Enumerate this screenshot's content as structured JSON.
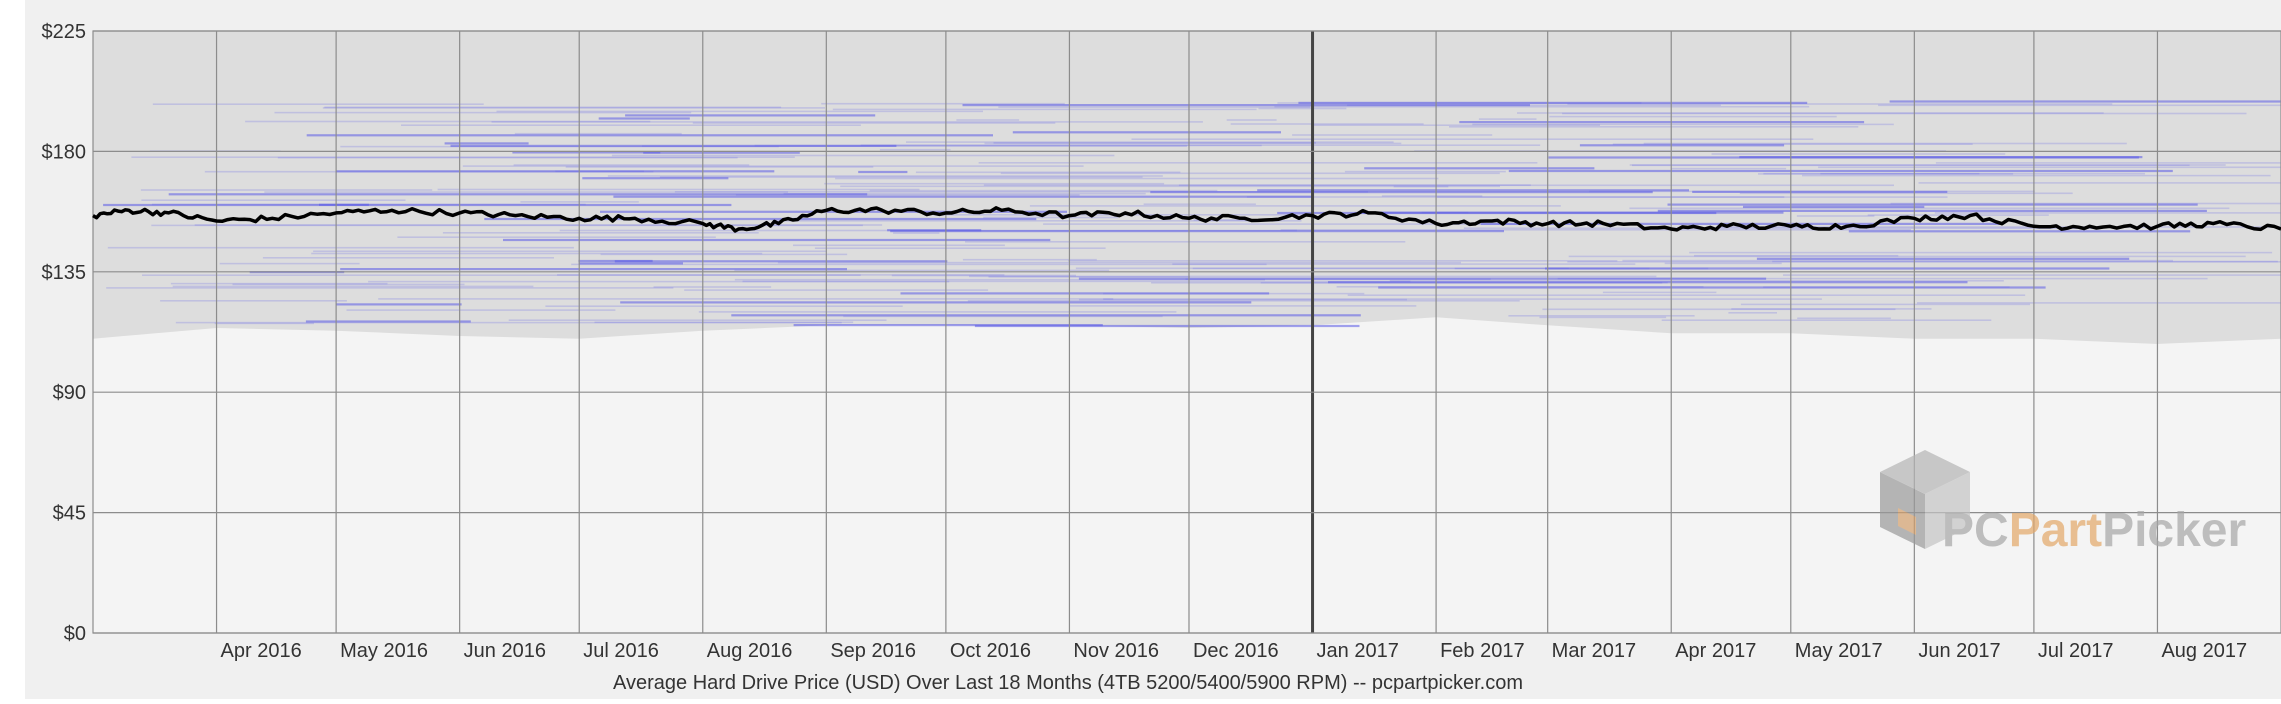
{
  "chart_data": {
    "type": "area",
    "title": "Average Hard Drive Price (USD) Over Last 18 Months (4TB 5200/5400/5900 RPM) -- pcpartpicker.com",
    "xlabel": "",
    "ylabel": "",
    "ylim": [
      0,
      225
    ],
    "yticks": [
      {
        "value": 0,
        "label": "$0"
      },
      {
        "value": 45,
        "label": "$45"
      },
      {
        "value": 90,
        "label": "$90"
      },
      {
        "value": 135,
        "label": "$135"
      },
      {
        "value": 180,
        "label": "$180"
      },
      {
        "value": 225,
        "label": "$225"
      }
    ],
    "xlim": [
      "2016-03-01",
      "2017-09-01"
    ],
    "months": [
      {
        "date": "2016-04-01",
        "label": "Apr 2016"
      },
      {
        "date": "2016-05-01",
        "label": "May 2016"
      },
      {
        "date": "2016-06-01",
        "label": "Jun 2016"
      },
      {
        "date": "2016-07-01",
        "label": "Jul 2016"
      },
      {
        "date": "2016-08-01",
        "label": "Aug 2016"
      },
      {
        "date": "2016-09-01",
        "label": "Sep 2016"
      },
      {
        "date": "2016-10-01",
        "label": "Oct 2016"
      },
      {
        "date": "2016-11-01",
        "label": "Nov 2016"
      },
      {
        "date": "2016-12-01",
        "label": "Dec 2016"
      },
      {
        "date": "2017-01-01",
        "label": "Jan 2017"
      },
      {
        "date": "2017-02-01",
        "label": "Feb 2017"
      },
      {
        "date": "2017-03-01",
        "label": "Mar 2017"
      },
      {
        "date": "2017-04-01",
        "label": "Apr 2017"
      },
      {
        "date": "2017-05-01",
        "label": "May 2017"
      },
      {
        "date": "2017-06-01",
        "label": "Jun 2017"
      },
      {
        "date": "2017-07-01",
        "label": "Jul 2017"
      },
      {
        "date": "2017-08-01",
        "label": "Aug 2017"
      }
    ],
    "year_boundary": "2017-01-01",
    "grid": true,
    "price_range_band": {
      "x": [
        "2016-03-01",
        "2016-04-01",
        "2016-05-01",
        "2016-06-01",
        "2016-07-01",
        "2016-08-01",
        "2016-09-01",
        "2016-10-01",
        "2016-11-01",
        "2016-12-01",
        "2017-01-01",
        "2017-02-01",
        "2017-03-01",
        "2017-04-01",
        "2017-05-01",
        "2017-06-01",
        "2017-07-01",
        "2017-08-01",
        "2017-09-01"
      ],
      "min": [
        110,
        114,
        113,
        111,
        110,
        113,
        115,
        115,
        115,
        114,
        115,
        118,
        115,
        112,
        112,
        110,
        110,
        108,
        110
      ],
      "max": [
        225,
        225,
        225,
        225,
        225,
        225,
        225,
        225,
        225,
        225,
        225,
        225,
        225,
        225,
        225,
        225,
        225,
        225,
        225
      ]
    },
    "series": [
      {
        "type": "line",
        "x": [
          "2016-03-01",
          "2016-03-10",
          "2016-03-20",
          "2016-04-01",
          "2016-04-15",
          "2016-05-01",
          "2016-05-15",
          "2016-06-01",
          "2016-06-15",
          "2016-07-01",
          "2016-07-15",
          "2016-08-01",
          "2016-08-10",
          "2016-08-20",
          "2016-09-01",
          "2016-09-15",
          "2016-10-01",
          "2016-10-15",
          "2016-11-01",
          "2016-11-15",
          "2016-12-01",
          "2016-12-15",
          "2017-01-01",
          "2017-01-15",
          "2017-02-01",
          "2017-02-15",
          "2017-03-01",
          "2017-03-15",
          "2017-04-01",
          "2017-04-15",
          "2017-05-01",
          "2017-05-15",
          "2017-06-01",
          "2017-06-15",
          "2017-07-01",
          "2017-07-15",
          "2017-08-01",
          "2017-08-15",
          "2017-09-01"
        ],
        "values": [
          156,
          158,
          157,
          154,
          155,
          157,
          158,
          157,
          156,
          155,
          155,
          153,
          151,
          153,
          158,
          158,
          157,
          158,
          156,
          157,
          155,
          155,
          156,
          157,
          153,
          154,
          153,
          153,
          151,
          152,
          152,
          152,
          155,
          156,
          152,
          152,
          152,
          153,
          151
        ]
      }
    ]
  },
  "watermark": {
    "brand_part1": "PC",
    "brand_part2": "Part",
    "brand_part3": "Picker"
  },
  "colors": {
    "plot_bg": "#f4f4f4",
    "band": "#dddddd",
    "listing_lines": "#5a5ae6",
    "avg_line": "#000000",
    "grid": "#8c8c8c",
    "watermark_gray": "#a6a6a6",
    "watermark_orange": "#e0a060"
  }
}
